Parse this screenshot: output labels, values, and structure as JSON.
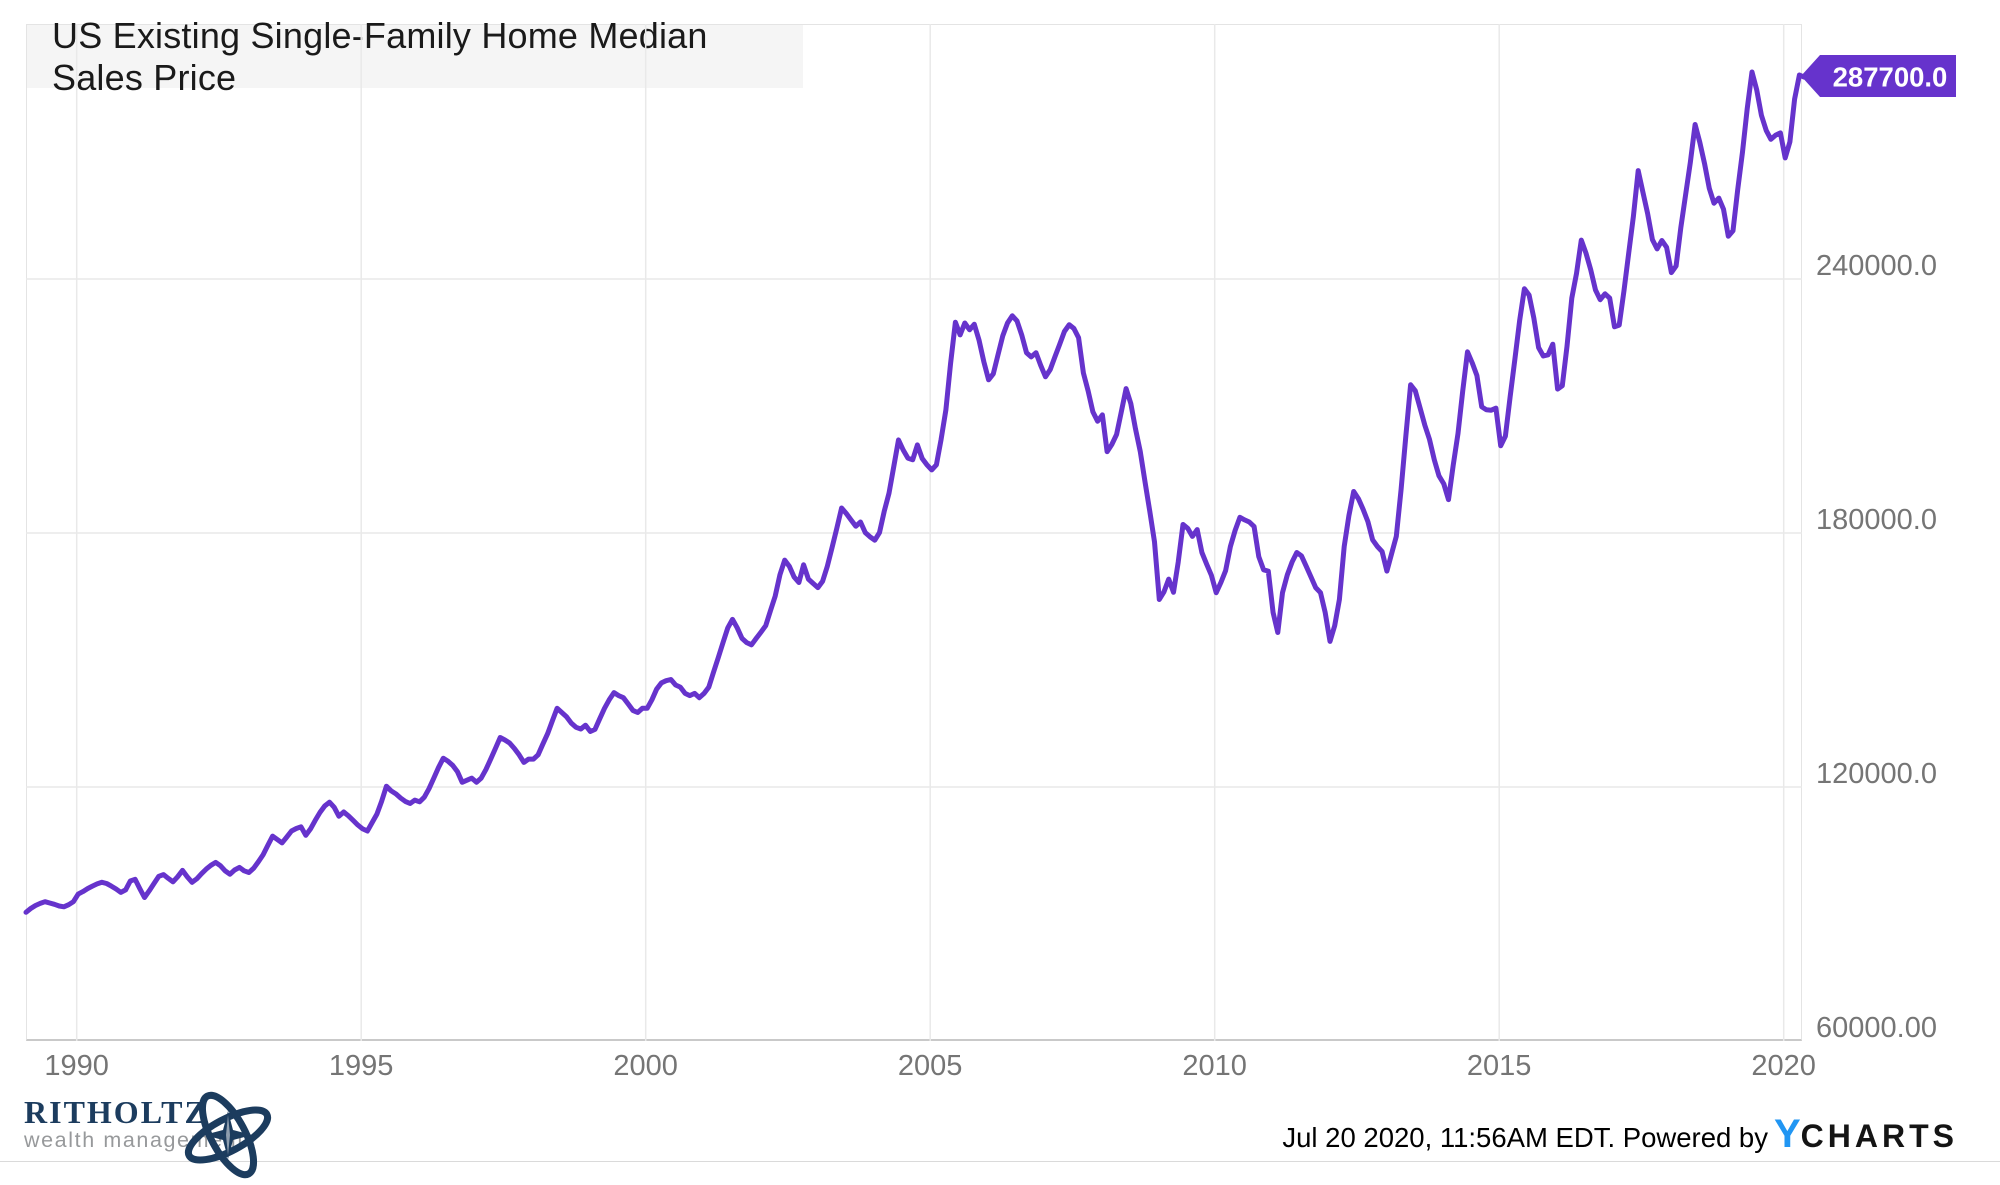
{
  "chart": {
    "title": "US Existing Single-Family Home Median Sales Price",
    "last_value_badge": "287700.0",
    "badge_color": "#6633CC",
    "line_color": "#6633CC",
    "grid_color": "#e9e9e9",
    "axis_text_color": "#757575",
    "title_bg": "#f5f5f5"
  },
  "chart_data": {
    "type": "line",
    "title": "US Existing Single-Family Home Median Sales Price",
    "series": [
      {
        "name": "US Existing Single-Family Home Median Sales Price"
      }
    ],
    "x_start_year": 1989,
    "x_start_month": 2,
    "frequency": "monthly",
    "xlim": [
      1989.083,
      2020.42
    ],
    "ylim": [
      60000,
      300240
    ],
    "grid": true,
    "legend_position": "none",
    "x_ticks": [
      {
        "year": 1990,
        "label": "1990"
      },
      {
        "year": 1995,
        "label": "1995"
      },
      {
        "year": 2000,
        "label": "2000"
      },
      {
        "year": 2005,
        "label": "2005"
      },
      {
        "year": 2010,
        "label": "2010"
      },
      {
        "year": 2015,
        "label": "2015"
      },
      {
        "year": 2020,
        "label": "2020"
      }
    ],
    "y_ticks": [
      {
        "value": 240000,
        "label": "240000.0",
        "gridline": true
      },
      {
        "value": 180000,
        "label": "180000.0",
        "gridline": true
      },
      {
        "value": 120000,
        "label": "120000.0",
        "gridline": true
      },
      {
        "value": 60000,
        "label": "60000.00",
        "gridline": false
      }
    ],
    "last_value": 287700,
    "values": [
      90400,
      91300,
      92000,
      92500,
      92900,
      92600,
      92300,
      91900,
      91700,
      92200,
      92900,
      94700,
      95300,
      96000,
      96600,
      97100,
      97500,
      97200,
      96600,
      95900,
      95100,
      95700,
      97800,
      98200,
      96000,
      93900,
      95500,
      97200,
      98900,
      99300,
      98400,
      97600,
      98800,
      100300,
      98800,
      97500,
      98300,
      99500,
      100600,
      101500,
      102200,
      101400,
      100200,
      99400,
      100400,
      101000,
      100200,
      99800,
      100800,
      102300,
      104000,
      106200,
      108400,
      107600,
      106800,
      108200,
      109600,
      110200,
      110600,
      108600,
      110100,
      112100,
      114000,
      115500,
      116400,
      115200,
      113100,
      114100,
      113200,
      112100,
      111000,
      110100,
      109600,
      111600,
      113600,
      116600,
      120200,
      119100,
      118400,
      117400,
      116600,
      116100,
      116900,
      116500,
      117600,
      119600,
      122100,
      124600,
      126800,
      126100,
      125100,
      123600,
      121100,
      121600,
      122100,
      121100,
      122100,
      124100,
      126600,
      129100,
      131700,
      131100,
      130400,
      129100,
      127600,
      125800,
      126600,
      126600,
      127600,
      130100,
      132600,
      135600,
      138600,
      137600,
      136600,
      135100,
      134100,
      133700,
      134600,
      133100,
      133600,
      136100,
      138600,
      140600,
      142300,
      141600,
      141100,
      139600,
      138100,
      137600,
      138600,
      138600,
      140600,
      143100,
      144600,
      145100,
      145400,
      144100,
      143600,
      142100,
      141600,
      142100,
      141100,
      142100,
      143600,
      147100,
      150600,
      154100,
      157600,
      159600,
      157600,
      155100,
      154100,
      153600,
      155100,
      156600,
      158100,
      161600,
      165100,
      170100,
      173600,
      172100,
      169600,
      168300,
      172500,
      169100,
      168100,
      167100,
      168600,
      172100,
      176600,
      181100,
      185900,
      184600,
      183100,
      181600,
      182600,
      180100,
      179100,
      178300,
      180100,
      185100,
      189400,
      195600,
      202000,
      199600,
      197700,
      197300,
      200800,
      197600,
      196100,
      194900,
      196100,
      202100,
      209100,
      220100,
      229800,
      226800,
      229600,
      228000,
      229300,
      225500,
      220500,
      216200,
      217600,
      222100,
      226600,
      229600,
      231300,
      230100,
      226800,
      222600,
      221600,
      222600,
      219600,
      216900,
      218600,
      221600,
      224600,
      227600,
      229200,
      228300,
      226100,
      217800,
      213600,
      208600,
      206400,
      207900,
      199200,
      200900,
      203300,
      208600,
      214100,
      210600,
      204600,
      199200,
      192100,
      185100,
      177900,
      164300,
      166100,
      169100,
      166000,
      173100,
      182000,
      181100,
      179200,
      180800,
      175400,
      172600,
      170000,
      165900,
      168300,
      171100,
      176800,
      180600,
      183700,
      183100,
      182600,
      181500,
      174400,
      171300,
      171000,
      161200,
      156500,
      165900,
      170100,
      173100,
      175400,
      174600,
      172100,
      169600,
      167100,
      165900,
      161200,
      154400,
      158100,
      164300,
      176800,
      184100,
      189800,
      188100,
      185600,
      182700,
      178400,
      176800,
      175600,
      171000,
      175100,
      179200,
      190300,
      202800,
      215000,
      213600,
      209600,
      205500,
      202100,
      197300,
      193500,
      191600,
      187900,
      196000,
      203500,
      213500,
      222800,
      220200,
      217200,
      209800,
      209100,
      209000,
      209500,
      200600,
      202900,
      212100,
      221100,
      230100,
      237700,
      236200,
      230800,
      223800,
      221800,
      222100,
      224600,
      214000,
      214800,
      224100,
      235500,
      241300,
      249200,
      246100,
      242200,
      237400,
      235100,
      236500,
      235500,
      228700,
      229100,
      237100,
      246100,
      254800,
      265600,
      260500,
      255500,
      249300,
      247100,
      249100,
      247500,
      241500,
      243100,
      252100,
      259900,
      267500,
      276500,
      272300,
      267300,
      261400,
      257900,
      259100,
      256500,
      250100,
      251400,
      261100,
      270000,
      280200,
      288900,
      284700,
      278700,
      275100,
      273000,
      274000,
      274500,
      268600,
      272400,
      282500,
      288200,
      287700
    ]
  },
  "footer": {
    "ritholtz_name": "RITHOLTZ",
    "ritholtz_tagline": "wealth management",
    "timestamp_text": "Jul 20 2020, 11:56AM EDT. Powered by",
    "ycharts_y": "Y",
    "ycharts_rest": "CHARTS",
    "ycharts_blue": "#2196f3",
    "ritholtz_navy": "#1c3c5e"
  }
}
